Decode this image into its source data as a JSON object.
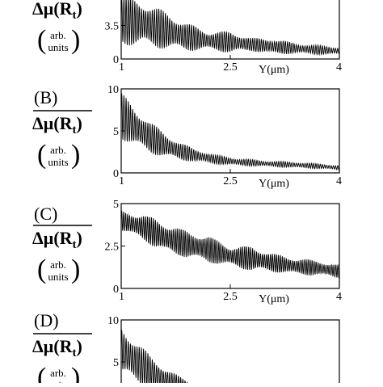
{
  "ylabel": {
    "main": "Δμ(R",
    "sub": "t",
    "close": ")",
    "units_top": "arb.",
    "units_bottom": "units"
  },
  "colors": {
    "ink": "#000000",
    "background": "#ffffff"
  },
  "chart_data": [
    {
      "type": "line",
      "panel_label": "",
      "title": "",
      "xlabel": "Y(μm)",
      "ylabel": "Δμ(Rt) (arb. units)",
      "xlim": [
        1,
        4
      ],
      "ylim": [
        0,
        7
      ],
      "x_ticks": [
        {
          "v": 1,
          "label": "1"
        },
        {
          "v": 2.5,
          "label": "2.5"
        },
        {
          "v": 4,
          "label": "4"
        }
      ],
      "y_ticks": [
        {
          "v": 0,
          "label": "0"
        },
        {
          "v": 3.5,
          "label": "3.5"
        }
      ],
      "grid": false,
      "signal": {
        "x_start": 1,
        "x_end": 4,
        "samples": 900,
        "cycles": 100,
        "envelope_x": [
          1.0,
          1.3,
          1.6,
          1.9,
          2.2,
          2.5,
          2.8,
          3.1,
          3.4,
          3.7,
          4.0
        ],
        "envelope_center": [
          4.1,
          3.7,
          3.0,
          2.3,
          1.9,
          1.75,
          1.5,
          1.3,
          1.1,
          0.95,
          0.85
        ],
        "envelope_amp": [
          2.7,
          2.4,
          2.0,
          1.5,
          1.0,
          1.15,
          0.7,
          0.85,
          0.55,
          0.5,
          0.4
        ]
      }
    },
    {
      "type": "line",
      "panel_label": "(B)",
      "title": "",
      "xlabel": "Y(μm)",
      "ylabel": "Δμ(Rt) (arb. units)",
      "xlim": [
        1,
        4
      ],
      "ylim": [
        0,
        10
      ],
      "x_ticks": [
        {
          "v": 1,
          "label": "1"
        },
        {
          "v": 2.5,
          "label": "2.5"
        },
        {
          "v": 4,
          "label": "4"
        }
      ],
      "y_ticks": [
        {
          "v": 0,
          "label": "0"
        },
        {
          "v": 5,
          "label": "5"
        },
        {
          "v": 10,
          "label": "10"
        }
      ],
      "grid": false,
      "signal": {
        "x_start": 1,
        "x_end": 4,
        "samples": 900,
        "cycles": 100,
        "envelope_x": [
          1.0,
          1.2,
          1.4,
          1.6,
          1.8,
          2.0,
          2.3,
          2.6,
          3.0,
          3.4,
          3.8,
          4.0
        ],
        "envelope_center": [
          6.8,
          5.4,
          4.2,
          3.3,
          2.6,
          2.1,
          1.6,
          1.3,
          1.1,
          0.95,
          0.75,
          0.6
        ],
        "envelope_amp": [
          2.8,
          2.4,
          1.9,
          1.5,
          1.1,
          0.8,
          0.55,
          0.45,
          0.35,
          0.35,
          0.3,
          0.3
        ]
      }
    },
    {
      "type": "line",
      "panel_label": "(C)",
      "title": "",
      "xlabel": "Y(μm)",
      "ylabel": "Δμ(Rt) (arb. units)",
      "xlim": [
        1,
        4
      ],
      "ylim": [
        0,
        5
      ],
      "x_ticks": [
        {
          "v": 1,
          "label": "1"
        },
        {
          "v": 2.5,
          "label": "2.5"
        },
        {
          "v": 4,
          "label": "4"
        }
      ],
      "y_ticks": [
        {
          "v": 0,
          "label": "0"
        },
        {
          "v": 2.5,
          "label": "2.5"
        },
        {
          "v": 5,
          "label": "5"
        }
      ],
      "grid": false,
      "signal": {
        "x_start": 1,
        "x_end": 4,
        "samples": 900,
        "cycles": 110,
        "envelope_x": [
          1.0,
          1.3,
          1.6,
          1.9,
          2.2,
          2.5,
          2.8,
          3.1,
          3.4,
          3.7,
          4.0
        ],
        "envelope_center": [
          4.0,
          3.6,
          3.0,
          2.6,
          2.3,
          1.9,
          1.75,
          1.5,
          1.3,
          1.2,
          1.0
        ],
        "envelope_amp": [
          0.6,
          0.8,
          0.9,
          0.8,
          0.8,
          0.6,
          0.75,
          0.55,
          0.5,
          0.45,
          0.4
        ]
      }
    },
    {
      "type": "line",
      "panel_label": "(D)",
      "title": "",
      "xlabel": "",
      "ylabel": "Δμ(Rt) (arb. units)",
      "xlim": [
        1,
        4
      ],
      "ylim": [
        0,
        10
      ],
      "x_ticks": [],
      "y_ticks": [
        {
          "v": 5,
          "label": "5"
        },
        {
          "v": 10,
          "label": "10"
        }
      ],
      "grid": false,
      "signal": {
        "x_start": 1,
        "x_end": 4,
        "samples": 900,
        "cycles": 100,
        "envelope_x": [
          1.0,
          1.2,
          1.4,
          1.6,
          1.8,
          2.0,
          2.3,
          2.6,
          3.0,
          3.4,
          3.8,
          4.0
        ],
        "envelope_center": [
          6.5,
          5.0,
          3.8,
          2.9,
          2.2,
          1.7,
          1.3,
          1.1,
          1.0,
          0.9,
          0.9,
          0.8
        ],
        "envelope_amp": [
          3.0,
          2.6,
          2.0,
          1.5,
          1.1,
          0.8,
          0.6,
          0.5,
          0.7,
          0.6,
          0.5,
          0.4
        ]
      }
    }
  ]
}
